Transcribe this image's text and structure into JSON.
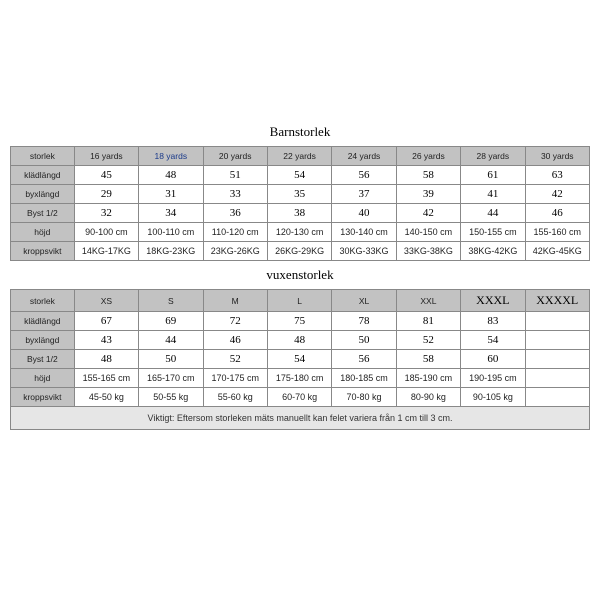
{
  "child": {
    "title": "Barnstorlek",
    "headers": [
      "storlek",
      "16 yards",
      "18 yards",
      "20 yards",
      "22 yards",
      "24 yards",
      "26 yards",
      "28 yards",
      "30 yards"
    ],
    "header_accent_idx": 2,
    "rows": [
      {
        "label": "klädlängd",
        "cells": [
          "45",
          "48",
          "51",
          "54",
          "56",
          "58",
          "61",
          "63"
        ],
        "big": true
      },
      {
        "label": "byxlängd",
        "cells": [
          "29",
          "31",
          "33",
          "35",
          "37",
          "39",
          "41",
          "42"
        ],
        "big": true
      },
      {
        "label": "Byst 1/2",
        "cells": [
          "32",
          "34",
          "36",
          "38",
          "40",
          "42",
          "44",
          "46"
        ],
        "big": true
      },
      {
        "label": "höjd",
        "cells": [
          "90-100 cm",
          "100-110 cm",
          "110-120 cm",
          "120-130 cm",
          "130-140 cm",
          "140-150 cm",
          "150-155 cm",
          "155-160 cm"
        ],
        "big": false
      },
      {
        "label": "kroppsvikt",
        "cells": [
          "14KG-17KG",
          "18KG-23KG",
          "23KG-26KG",
          "26KG-29KG",
          "30KG-33KG",
          "33KG-38KG",
          "38KG-42KG",
          "42KG-45KG"
        ],
        "big": false
      }
    ]
  },
  "adult": {
    "title": "vuxenstorlek",
    "headers": [
      "storlek",
      "XS",
      "S",
      "M",
      "L",
      "XL",
      "XXL",
      "XXXL",
      "XXXXL"
    ],
    "header_big_from": 7,
    "rows": [
      {
        "label": "klädlängd",
        "cells": [
          "67",
          "69",
          "72",
          "75",
          "78",
          "81",
          "83",
          ""
        ],
        "big": true
      },
      {
        "label": "byxlängd",
        "cells": [
          "43",
          "44",
          "46",
          "48",
          "50",
          "52",
          "54",
          ""
        ],
        "big": true
      },
      {
        "label": "Byst 1/2",
        "cells": [
          "48",
          "50",
          "52",
          "54",
          "56",
          "58",
          "60",
          ""
        ],
        "big": true
      },
      {
        "label": "höjd",
        "cells": [
          "155-165 cm",
          "165-170 cm",
          "170-175 cm",
          "175-180 cm",
          "180-185 cm",
          "185-190 cm",
          "190-195 cm",
          ""
        ],
        "big": false
      },
      {
        "label": "kroppsvikt",
        "cells": [
          "45-50 kg",
          "50-55 kg",
          "55-60 kg",
          "60-70 kg",
          "70-80 kg",
          "80-90 kg",
          "90-105 kg",
          ""
        ],
        "big": false
      }
    ]
  },
  "footer": "Viktigt: Eftersom storleken mäts manuellt kan felet variera från 1 cm till 3 cm."
}
